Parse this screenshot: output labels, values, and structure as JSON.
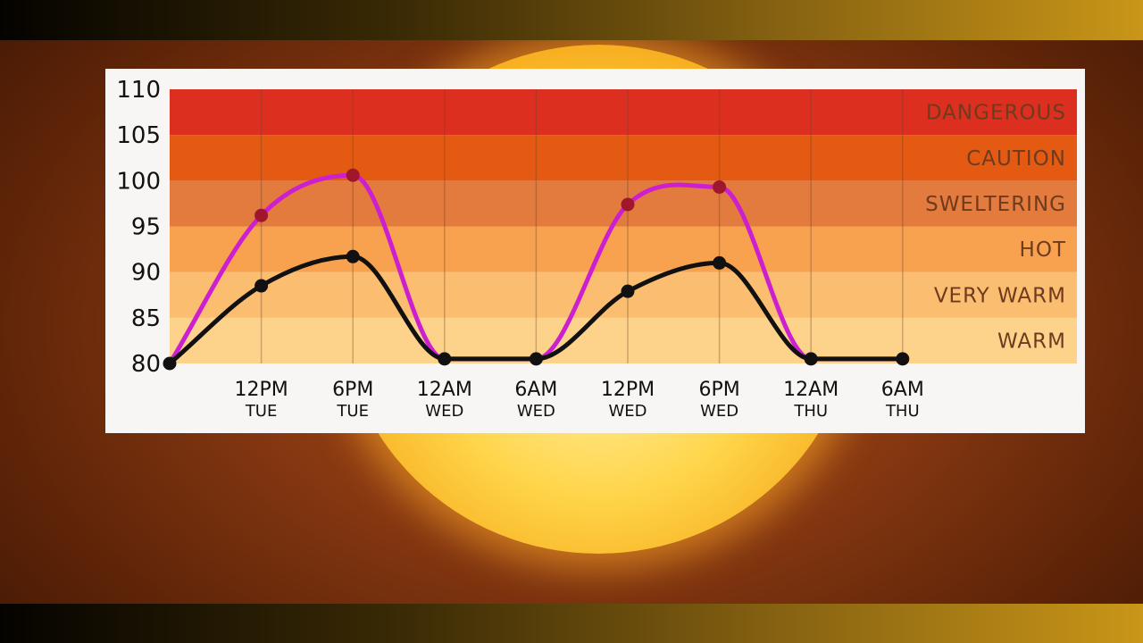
{
  "chart_data": {
    "type": "line",
    "yticks": [
      80,
      85,
      90,
      95,
      100,
      105,
      110
    ],
    "ylim": [
      80,
      110
    ],
    "zones": [
      {
        "label": "WARM",
        "from": 80,
        "to": 85,
        "color": "#fdd38c"
      },
      {
        "label": "VERY WARM",
        "from": 85,
        "to": 90,
        "color": "#fbbd70"
      },
      {
        "label": "HOT",
        "from": 90,
        "to": 95,
        "color": "#f8a24f"
      },
      {
        "label": "SWELTERING",
        "from": 95,
        "to": 100,
        "color": "#e37a3e"
      },
      {
        "label": "CAUTION",
        "from": 100,
        "to": 105,
        "color": "#e45a12"
      },
      {
        "label": "DANGEROUS",
        "from": 105,
        "to": 110,
        "color": "#dc2f20"
      }
    ],
    "categories": [
      {
        "time": "12PM",
        "day": "TUE"
      },
      {
        "time": "6PM",
        "day": "TUE"
      },
      {
        "time": "12AM",
        "day": "WED"
      },
      {
        "time": "6AM",
        "day": "WED"
      },
      {
        "time": "12PM",
        "day": "WED"
      },
      {
        "time": "6PM",
        "day": "WED"
      },
      {
        "time": "12AM",
        "day": "THU"
      },
      {
        "time": "6AM",
        "day": "THU"
      }
    ],
    "x": [
      -1,
      0,
      1,
      2,
      3,
      4,
      5,
      6,
      7
    ],
    "series": [
      {
        "values": [
          80,
          88.5,
          91.7,
          80.5,
          80.5,
          87.9,
          91,
          80.5,
          80.5
        ],
        "color": "#111111",
        "marker": "#111111"
      },
      {
        "values": [
          80,
          96.2,
          100.6,
          80.5,
          80.5,
          97.4,
          99.3,
          80.5,
          80.5
        ],
        "color": "#cc1fd0",
        "marker": "#a0162c"
      }
    ],
    "grid": true
  }
}
